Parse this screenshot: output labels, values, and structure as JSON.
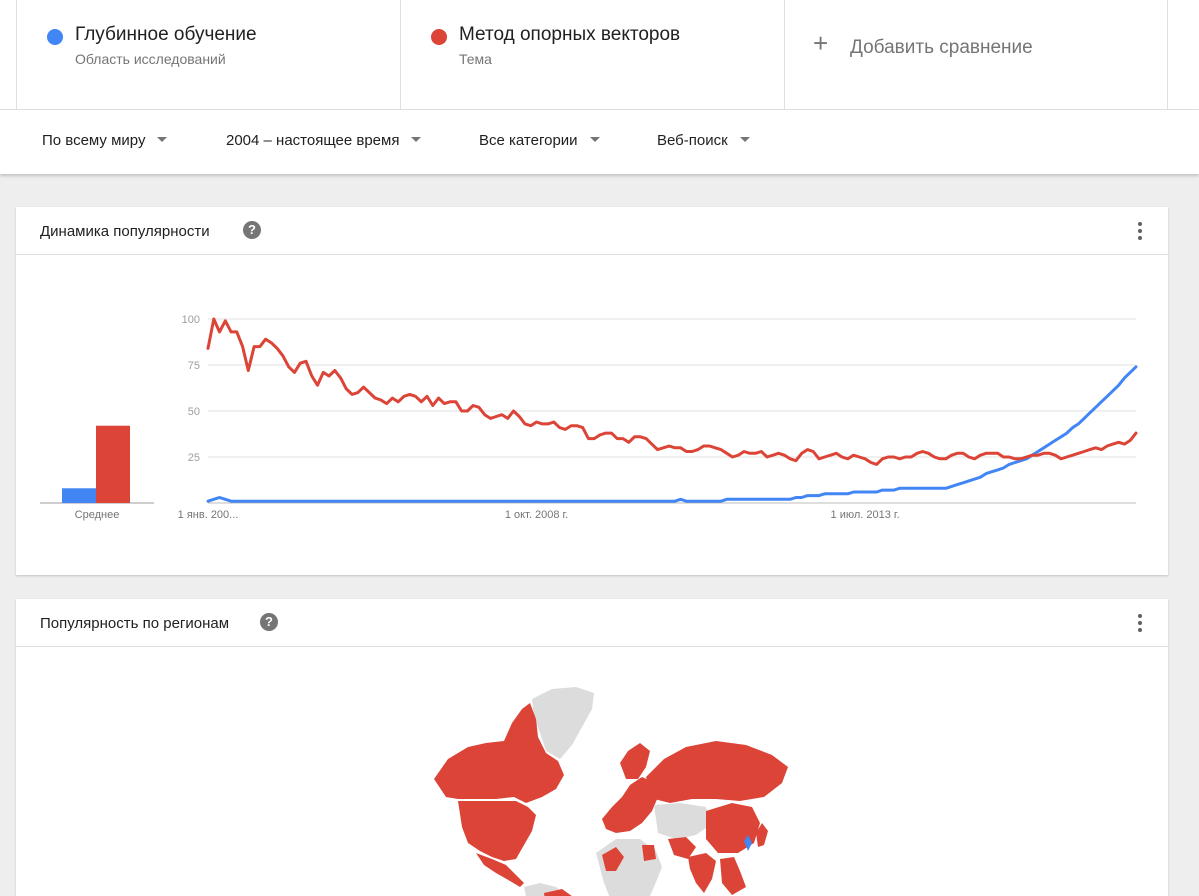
{
  "compare": {
    "terms": [
      {
        "name": "Глубинное обучение",
        "type": "Область исследований",
        "color": "#4285f4"
      },
      {
        "name": "Метод опорных векторов",
        "type": "Тема",
        "color": "#db4437"
      }
    ],
    "add_label": "Добавить сравнение",
    "add_icon": "plus-icon"
  },
  "filters": {
    "region": "По всему миру",
    "period": "2004 – настоящее время",
    "category": "Все категории",
    "search_type": "Веб-поиск"
  },
  "trend_card": {
    "title": "Динамика популярности",
    "help_icon": "?",
    "average_label": "Среднее"
  },
  "region_card": {
    "title": "Популярность по регионам",
    "help_icon": "?"
  },
  "chart_data": {
    "type": "line",
    "y_ticks": [
      "100",
      "75",
      "50",
      "25"
    ],
    "ylim": [
      0,
      100
    ],
    "grid": true,
    "x_tick_labels": [
      "1 янв. 200...",
      "1 окт. 2008 г.",
      "1 июл. 2013 г."
    ],
    "x_range": [
      "2004-01",
      "2017-11"
    ],
    "averages": [
      {
        "name": "Глубинное обучение",
        "value": 8,
        "color": "#4285f4"
      },
      {
        "name": "Метод опорных векторов",
        "value": 42,
        "color": "#db4437"
      }
    ],
    "series": [
      {
        "name": "Глубинное обучение",
        "color": "#4285f4",
        "points": [
          [
            0,
            1
          ],
          [
            1,
            2
          ],
          [
            2,
            3
          ],
          [
            3,
            2
          ],
          [
            4,
            1
          ],
          [
            5,
            1
          ],
          [
            6,
            1
          ],
          [
            7,
            1
          ],
          [
            8,
            1
          ],
          [
            9,
            1
          ],
          [
            10,
            1
          ],
          [
            11,
            1
          ],
          [
            12,
            1
          ],
          [
            13,
            1
          ],
          [
            14,
            1
          ],
          [
            15,
            1
          ],
          [
            16,
            1
          ],
          [
            17,
            1
          ],
          [
            18,
            1
          ],
          [
            19,
            1
          ],
          [
            20,
            1
          ],
          [
            21,
            1
          ],
          [
            22,
            1
          ],
          [
            23,
            1
          ],
          [
            24,
            1
          ],
          [
            25,
            1
          ],
          [
            26,
            1
          ],
          [
            27,
            1
          ],
          [
            28,
            1
          ],
          [
            29,
            1
          ],
          [
            30,
            1
          ],
          [
            31,
            1
          ],
          [
            32,
            1
          ],
          [
            33,
            1
          ],
          [
            34,
            1
          ],
          [
            35,
            1
          ],
          [
            36,
            1
          ],
          [
            37,
            1
          ],
          [
            38,
            1
          ],
          [
            39,
            1
          ],
          [
            40,
            1
          ],
          [
            41,
            1
          ],
          [
            42,
            1
          ],
          [
            43,
            1
          ],
          [
            44,
            1
          ],
          [
            45,
            1
          ],
          [
            46,
            1
          ],
          [
            47,
            1
          ],
          [
            48,
            1
          ],
          [
            49,
            1
          ],
          [
            50,
            1
          ],
          [
            51,
            1
          ],
          [
            52,
            1
          ],
          [
            53,
            1
          ],
          [
            54,
            1
          ],
          [
            55,
            1
          ],
          [
            56,
            1
          ],
          [
            57,
            1
          ],
          [
            58,
            1
          ],
          [
            59,
            1
          ],
          [
            60,
            1
          ],
          [
            61,
            1
          ],
          [
            62,
            1
          ],
          [
            63,
            1
          ],
          [
            64,
            1
          ],
          [
            65,
            1
          ],
          [
            66,
            1
          ],
          [
            67,
            1
          ],
          [
            68,
            1
          ],
          [
            69,
            1
          ],
          [
            70,
            1
          ],
          [
            71,
            1
          ],
          [
            72,
            1
          ],
          [
            73,
            1
          ],
          [
            74,
            1
          ],
          [
            75,
            1
          ],
          [
            76,
            1
          ],
          [
            77,
            1
          ],
          [
            78,
            1
          ],
          [
            79,
            1
          ],
          [
            80,
            1
          ],
          [
            81,
            1
          ],
          [
            82,
            2
          ],
          [
            83,
            1
          ],
          [
            84,
            1
          ],
          [
            85,
            1
          ],
          [
            86,
            1
          ],
          [
            87,
            1
          ],
          [
            88,
            1
          ],
          [
            89,
            1
          ],
          [
            90,
            2
          ],
          [
            91,
            2
          ],
          [
            92,
            2
          ],
          [
            93,
            2
          ],
          [
            94,
            2
          ],
          [
            95,
            2
          ],
          [
            96,
            2
          ],
          [
            97,
            2
          ],
          [
            98,
            2
          ],
          [
            99,
            2
          ],
          [
            100,
            2
          ],
          [
            101,
            2
          ],
          [
            102,
            3
          ],
          [
            103,
            3
          ],
          [
            104,
            4
          ],
          [
            105,
            4
          ],
          [
            106,
            4
          ],
          [
            107,
            5
          ],
          [
            108,
            5
          ],
          [
            109,
            5
          ],
          [
            110,
            5
          ],
          [
            111,
            5
          ],
          [
            112,
            6
          ],
          [
            113,
            6
          ],
          [
            114,
            6
          ],
          [
            115,
            6
          ],
          [
            116,
            6
          ],
          [
            117,
            7
          ],
          [
            118,
            7
          ],
          [
            119,
            7
          ],
          [
            120,
            8
          ],
          [
            121,
            8
          ],
          [
            122,
            8
          ],
          [
            123,
            8
          ],
          [
            124,
            8
          ],
          [
            125,
            8
          ],
          [
            126,
            8
          ],
          [
            127,
            8
          ],
          [
            128,
            8
          ],
          [
            129,
            9
          ],
          [
            130,
            10
          ],
          [
            131,
            11
          ],
          [
            132,
            12
          ],
          [
            133,
            13
          ],
          [
            134,
            14
          ],
          [
            135,
            16
          ],
          [
            136,
            17
          ],
          [
            137,
            18
          ],
          [
            138,
            19
          ],
          [
            139,
            21
          ],
          [
            140,
            22
          ],
          [
            141,
            23
          ],
          [
            142,
            24
          ],
          [
            143,
            26
          ],
          [
            144,
            28
          ],
          [
            145,
            30
          ],
          [
            146,
            32
          ],
          [
            147,
            34
          ],
          [
            148,
            36
          ],
          [
            149,
            38
          ],
          [
            150,
            41
          ],
          [
            151,
            43
          ],
          [
            152,
            46
          ],
          [
            153,
            49
          ],
          [
            154,
            52
          ],
          [
            155,
            55
          ],
          [
            156,
            58
          ],
          [
            157,
            61
          ],
          [
            158,
            64
          ],
          [
            159,
            68
          ],
          [
            160,
            71
          ],
          [
            161,
            74
          ]
        ]
      },
      {
        "name": "Метод опорных векторов",
        "color": "#db4437",
        "points": [
          [
            0,
            84
          ],
          [
            1,
            100
          ],
          [
            2,
            93
          ],
          [
            3,
            99
          ],
          [
            4,
            93
          ],
          [
            5,
            93
          ],
          [
            6,
            85
          ],
          [
            7,
            72
          ],
          [
            8,
            85
          ],
          [
            9,
            85
          ],
          [
            10,
            89
          ],
          [
            11,
            87
          ],
          [
            12,
            84
          ],
          [
            13,
            80
          ],
          [
            14,
            74
          ],
          [
            15,
            71
          ],
          [
            16,
            76
          ],
          [
            17,
            77
          ],
          [
            18,
            69
          ],
          [
            19,
            64
          ],
          [
            20,
            71
          ],
          [
            21,
            69
          ],
          [
            22,
            72
          ],
          [
            23,
            68
          ],
          [
            24,
            62
          ],
          [
            25,
            59
          ],
          [
            26,
            60
          ],
          [
            27,
            63
          ],
          [
            28,
            60
          ],
          [
            29,
            57
          ],
          [
            30,
            56
          ],
          [
            31,
            54
          ],
          [
            32,
            57
          ],
          [
            33,
            55
          ],
          [
            34,
            58
          ],
          [
            35,
            59
          ],
          [
            36,
            58
          ],
          [
            37,
            55
          ],
          [
            38,
            58
          ],
          [
            39,
            53
          ],
          [
            40,
            57
          ],
          [
            41,
            54
          ],
          [
            42,
            55
          ],
          [
            43,
            55
          ],
          [
            44,
            50
          ],
          [
            45,
            50
          ],
          [
            46,
            53
          ],
          [
            47,
            52
          ],
          [
            48,
            48
          ],
          [
            49,
            46
          ],
          [
            50,
            47
          ],
          [
            51,
            48
          ],
          [
            52,
            46
          ],
          [
            53,
            50
          ],
          [
            54,
            47
          ],
          [
            55,
            43
          ],
          [
            56,
            42
          ],
          [
            57,
            44
          ],
          [
            58,
            43
          ],
          [
            59,
            43
          ],
          [
            60,
            44
          ],
          [
            61,
            41
          ],
          [
            62,
            40
          ],
          [
            63,
            42
          ],
          [
            64,
            42
          ],
          [
            65,
            41
          ],
          [
            66,
            35
          ],
          [
            67,
            35
          ],
          [
            68,
            37
          ],
          [
            69,
            38
          ],
          [
            70,
            38
          ],
          [
            71,
            35
          ],
          [
            72,
            35
          ],
          [
            73,
            33
          ],
          [
            74,
            36
          ],
          [
            75,
            36
          ],
          [
            76,
            35
          ],
          [
            77,
            32
          ],
          [
            78,
            29
          ],
          [
            79,
            30
          ],
          [
            80,
            31
          ],
          [
            81,
            30
          ],
          [
            82,
            30
          ],
          [
            83,
            28
          ],
          [
            84,
            28
          ],
          [
            85,
            29
          ],
          [
            86,
            31
          ],
          [
            87,
            31
          ],
          [
            88,
            30
          ],
          [
            89,
            29
          ],
          [
            90,
            27
          ],
          [
            91,
            25
          ],
          [
            92,
            26
          ],
          [
            93,
            28
          ],
          [
            94,
            27
          ],
          [
            95,
            27
          ],
          [
            96,
            28
          ],
          [
            97,
            25
          ],
          [
            98,
            26
          ],
          [
            99,
            27
          ],
          [
            100,
            26
          ],
          [
            101,
            24
          ],
          [
            102,
            23
          ],
          [
            103,
            27
          ],
          [
            104,
            29
          ],
          [
            105,
            28
          ],
          [
            106,
            24
          ],
          [
            107,
            25
          ],
          [
            108,
            26
          ],
          [
            109,
            27
          ],
          [
            110,
            25
          ],
          [
            111,
            24
          ],
          [
            112,
            26
          ],
          [
            113,
            25
          ],
          [
            114,
            24
          ],
          [
            115,
            22
          ],
          [
            116,
            21
          ],
          [
            117,
            24
          ],
          [
            118,
            25
          ],
          [
            119,
            25
          ],
          [
            120,
            24
          ],
          [
            121,
            25
          ],
          [
            122,
            25
          ],
          [
            123,
            27
          ],
          [
            124,
            28
          ],
          [
            125,
            27
          ],
          [
            126,
            25
          ],
          [
            127,
            24
          ],
          [
            128,
            24
          ],
          [
            129,
            26
          ],
          [
            130,
            27
          ],
          [
            131,
            27
          ],
          [
            132,
            25
          ],
          [
            133,
            24
          ],
          [
            134,
            26
          ],
          [
            135,
            27
          ],
          [
            136,
            27
          ],
          [
            137,
            27
          ],
          [
            138,
            25
          ],
          [
            139,
            25
          ],
          [
            140,
            24
          ],
          [
            141,
            24
          ],
          [
            142,
            25
          ],
          [
            143,
            26
          ],
          [
            144,
            26
          ],
          [
            145,
            27
          ],
          [
            146,
            27
          ],
          [
            147,
            26
          ],
          [
            148,
            24
          ],
          [
            149,
            25
          ],
          [
            150,
            26
          ],
          [
            151,
            27
          ],
          [
            152,
            28
          ],
          [
            153,
            29
          ],
          [
            154,
            30
          ],
          [
            155,
            29
          ],
          [
            156,
            31
          ],
          [
            157,
            32
          ],
          [
            158,
            33
          ],
          [
            159,
            32
          ],
          [
            160,
            34
          ],
          [
            161,
            38
          ]
        ]
      }
    ]
  },
  "map_data": {
    "highlight_color": "#db4437",
    "secondary_color": "#4285f4",
    "neutral_color": "#dcdcdc"
  }
}
